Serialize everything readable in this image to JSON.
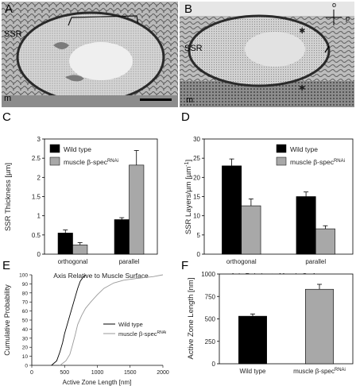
{
  "figure": {
    "panels": [
      {
        "letter": "A",
        "labels": [
          "SSR",
          "m"
        ]
      },
      {
        "letter": "B",
        "labels": [
          "SSR",
          "m",
          "o",
          "p"
        ]
      },
      {
        "letter": "C"
      },
      {
        "letter": "D"
      },
      {
        "letter": "E"
      },
      {
        "letter": "F"
      }
    ]
  },
  "colors": {
    "wild_type": "#000000",
    "muscle_rnai": "#a8a8a8",
    "cdf_muscle": "#9a9a9a"
  },
  "chart_data": [
    {
      "id": "C",
      "type": "bar",
      "ylabel": "SSR Thickness [µm]",
      "xlabel": "Axis Relative to Muscle Surface",
      "categories": [
        "orthogonal",
        "parallel"
      ],
      "ylim": [
        0,
        3
      ],
      "yticks": [
        "0",
        "0.5",
        "1",
        "1.5",
        "2",
        "2.5",
        "3"
      ],
      "series": [
        {
          "name": "Wild type",
          "values": [
            0.55,
            0.9
          ],
          "errors": [
            0.08,
            0.05
          ]
        },
        {
          "name": "muscle β-spec",
          "name_sup": "RNAi",
          "values": [
            0.24,
            2.32
          ],
          "errors": [
            0.06,
            0.38
          ]
        }
      ],
      "legend": "top-left"
    },
    {
      "id": "D",
      "type": "bar",
      "ylabel": "SSR Layers/µm [µm",
      "ylabel_sup": "-1",
      "ylabel_end": "]",
      "xlabel": "Axis Relative to Muscle Surface",
      "categories": [
        "orthogonal",
        "parallel"
      ],
      "ylim": [
        0,
        30
      ],
      "yticks": [
        "0",
        "5",
        "10",
        "15",
        "20",
        "25",
        "30"
      ],
      "series": [
        {
          "name": "Wild type",
          "values": [
            23,
            15
          ],
          "errors": [
            1.8,
            1.2
          ]
        },
        {
          "name": "muscle β-spec",
          "name_sup": "RNAi",
          "values": [
            12.6,
            6.6
          ],
          "errors": [
            1.8,
            0.8
          ]
        }
      ],
      "legend": "top-right"
    },
    {
      "id": "E",
      "type": "line",
      "ylabel": "Cumulative Probability",
      "xlabel": "Active Zone Length [nm]",
      "xlim": [
        0,
        2000
      ],
      "ylim": [
        0,
        100
      ],
      "xticks": [
        "0",
        "500",
        "1000",
        "1500",
        "2000"
      ],
      "yticks": [
        "0",
        "10",
        "20",
        "30",
        "40",
        "50",
        "60",
        "70",
        "80",
        "90",
        "100"
      ],
      "series": [
        {
          "name": "Wild type",
          "x": [
            300,
            380,
            430,
            470,
            500,
            540,
            580,
            620,
            660,
            700,
            740,
            790,
            830
          ],
          "y": [
            0,
            5,
            15,
            25,
            35,
            45,
            55,
            65,
            75,
            85,
            93,
            98,
            100
          ]
        },
        {
          "name": "muscle β-spec",
          "name_sup": "RNAi",
          "x": [
            430,
            520,
            580,
            620,
            660,
            700,
            760,
            820,
            900,
            1000,
            1100,
            1250,
            1400,
            1600,
            1850,
            2000
          ],
          "y": [
            0,
            5,
            12,
            22,
            33,
            45,
            55,
            63,
            70,
            78,
            85,
            91,
            94,
            96,
            98,
            100
          ]
        }
      ],
      "legend": "center-right"
    },
    {
      "id": "F",
      "type": "bar",
      "ylabel": "Active Zone Length [nm]",
      "categories": [
        "Wild type",
        "muscle β-spec"
      ],
      "category_sup": [
        "",
        "RNAi"
      ],
      "ylim": [
        0,
        1000
      ],
      "yticks": [
        "0",
        "250",
        "500",
        "750",
        "1000"
      ],
      "values": [
        530,
        830
      ],
      "errors": [
        25,
        55
      ],
      "bar_colors": [
        "#000000",
        "#a8a8a8"
      ]
    }
  ]
}
